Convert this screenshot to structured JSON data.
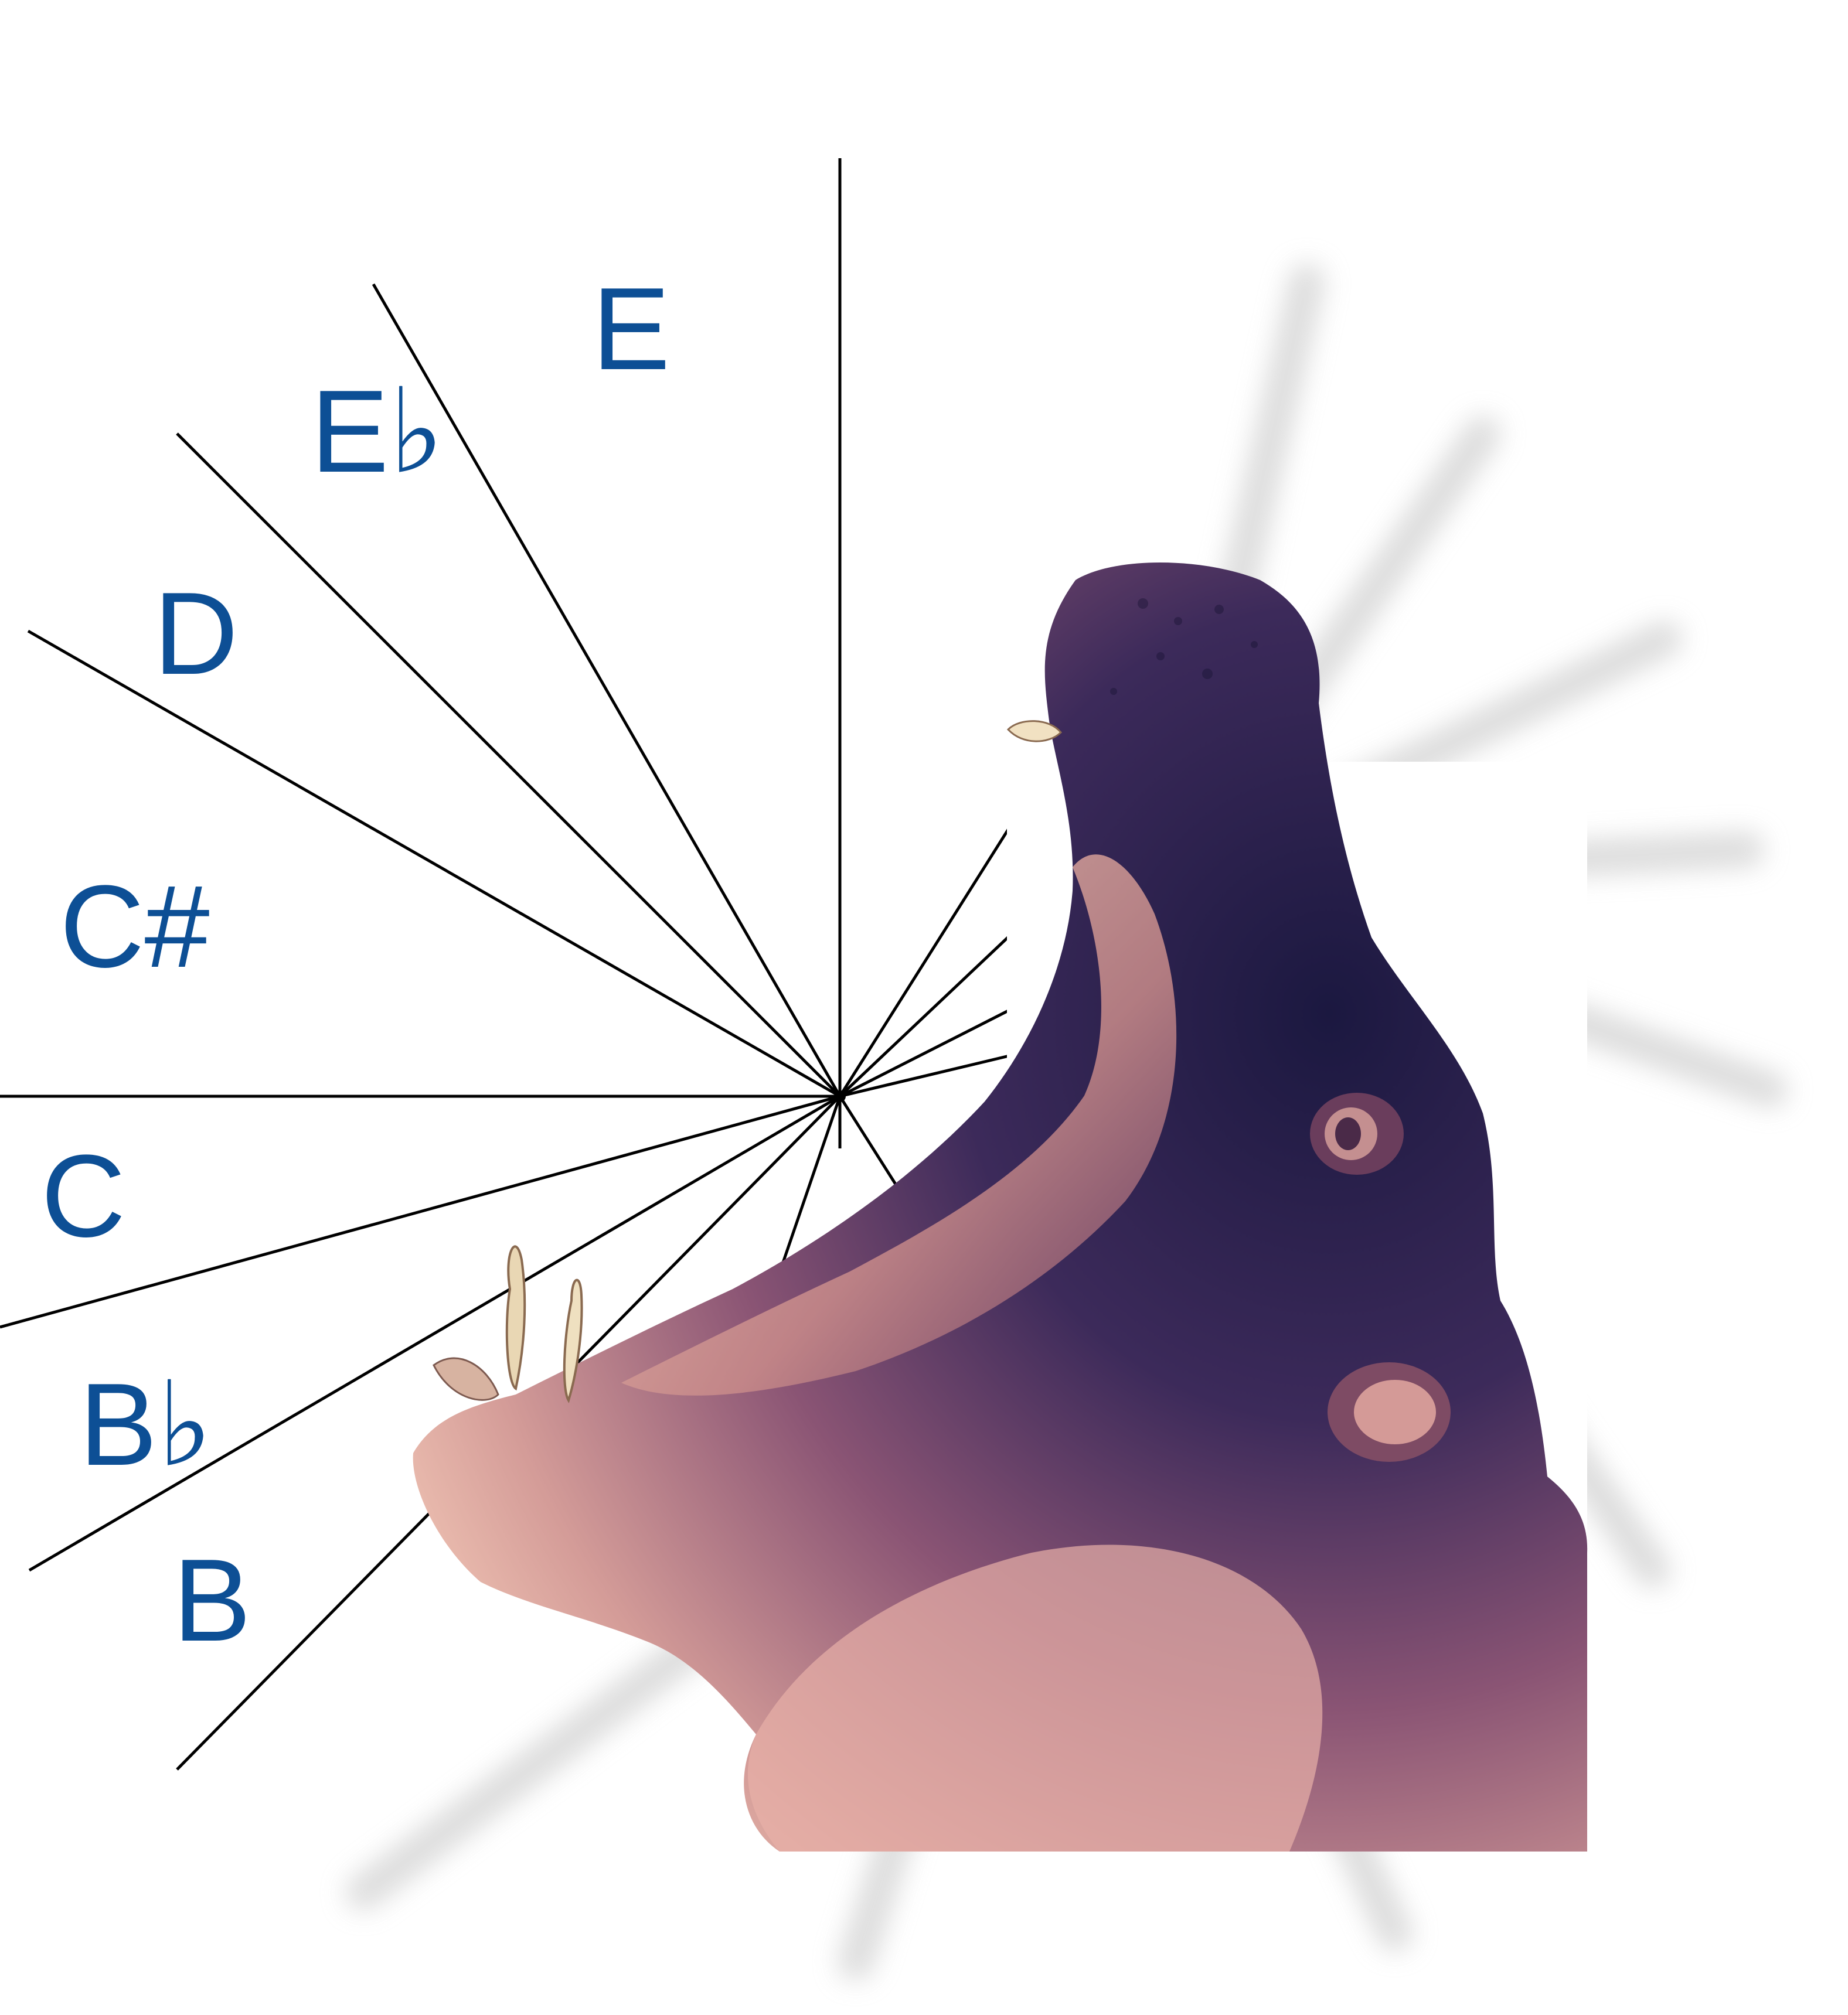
{
  "diagram": {
    "center_marker": "black-dot",
    "line_color": "#000000",
    "label_color": "#0d4f95",
    "notes": [
      {
        "id": "e",
        "label": "E"
      },
      {
        "id": "e-flat",
        "label": "E♭"
      },
      {
        "id": "d",
        "label": "D"
      },
      {
        "id": "c-sharp",
        "label": "C#"
      },
      {
        "id": "c",
        "label": "C"
      },
      {
        "id": "b-flat",
        "label": "B♭"
      },
      {
        "id": "b",
        "label": "B"
      }
    ]
  },
  "illustration": {
    "subject": "hippo-icon",
    "description_colors": {
      "dark": "#1b1840",
      "mid": "#7a4a6e",
      "light": "#e8b4a6",
      "shadow": "#d8d8d8"
    }
  }
}
